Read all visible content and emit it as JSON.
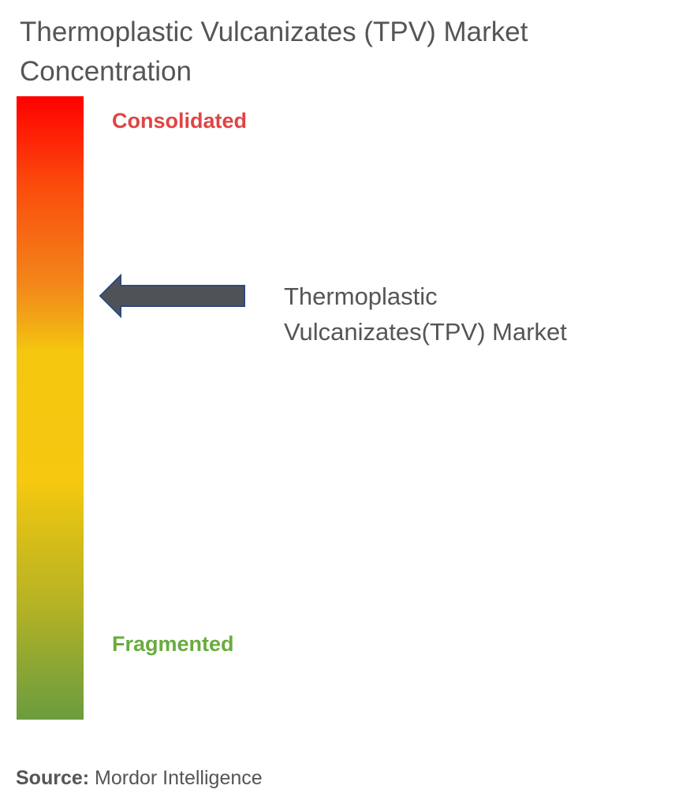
{
  "title": "Thermoplastic Vulcanizates (TPV) Market Concentration",
  "scale": {
    "top_label": "Consolidated",
    "bottom_label": "Fragmented"
  },
  "marker": {
    "label": "Thermoplastic Vulcanizates(TPV) Market"
  },
  "source": {
    "label": "Source:",
    "text": "Mordor Intelligence"
  }
}
